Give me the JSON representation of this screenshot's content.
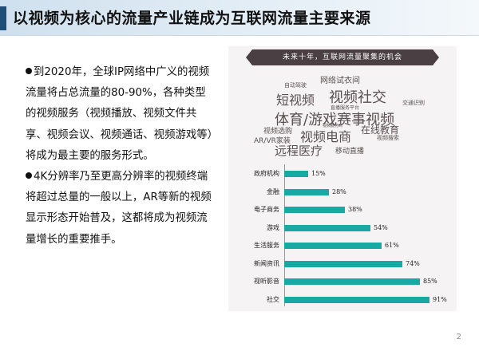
{
  "slide": {
    "title": "以视频为核心的流量产业链成为互联网流量主要来源",
    "page_number": "2"
  },
  "text": {
    "p1": "到2020年，全球IP网络中广义的视频流量将占总流量的80-90%，各种类型的视频服务（视频播放、视频文件共享、视频会议、视频通话、视频游戏等）将成为最主要的服务形式。",
    "p2": "4K分辨率乃至更高分辨率的视频终端将超过总量的一般以上，AR等新的视频显示形态开始普及，这都将成为视频流量增长的重要推手。"
  },
  "figure": {
    "banner": "未来十年，互联网流量聚集的机会",
    "word_cloud": [
      "网络试衣间",
      "自动驾驶",
      "短视频",
      "视频社交",
      "直播服务平台",
      "交通识别",
      "体育/游戏赛事视频",
      "视频选购",
      "在线教育",
      "AR/VR家装",
      "视频电商",
      "视频服务商",
      "视频搜索",
      "远程医疗",
      "移动直播"
    ]
  },
  "chart_data": {
    "type": "bar",
    "orientation": "horizontal",
    "categories": [
      "政府机构",
      "金融",
      "电子商务",
      "游戏",
      "生活服务",
      "新闻资讯",
      "视听影音",
      "社交"
    ],
    "values": [
      15,
      28,
      38,
      54,
      61,
      74,
      85,
      91
    ],
    "data_labels": [
      "15%",
      "28%",
      "38%",
      "54%",
      "61%",
      "74%",
      "85%",
      "91%"
    ],
    "xlim": [
      0,
      100
    ],
    "bar_color": "#17a9a2",
    "grid": false,
    "legend": "none"
  }
}
